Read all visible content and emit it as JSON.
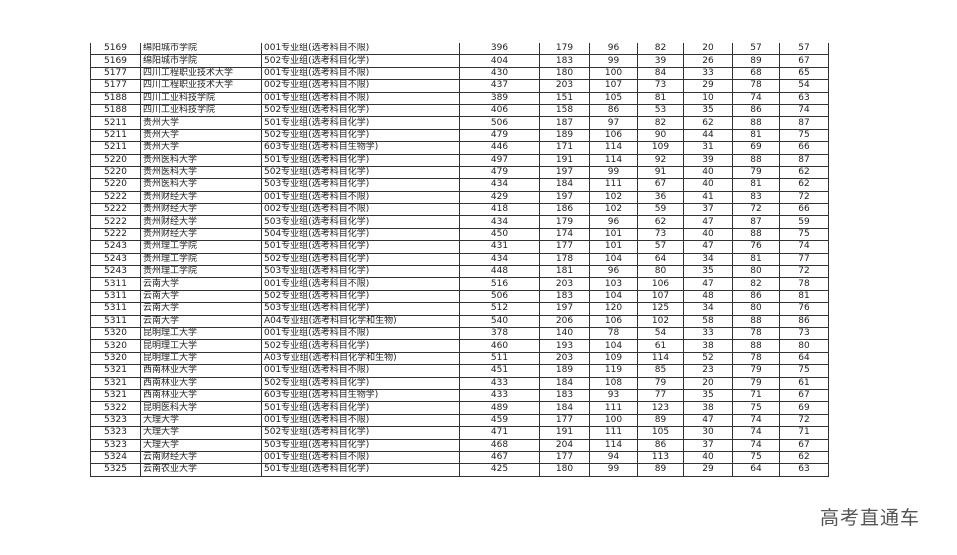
{
  "rows": [
    [
      "5169",
      "绵阳城市学院",
      "001专业组(选考科目不限)",
      "396",
      "179",
      "96",
      "82",
      "20",
      "57",
      "57"
    ],
    [
      "5169",
      "绵阳城市学院",
      "502专业组(选考科目化学)",
      "404",
      "183",
      "99",
      "39",
      "26",
      "89",
      "67"
    ],
    [
      "5177",
      "四川工程职业技术大学",
      "001专业组(选考科目不限)",
      "430",
      "180",
      "100",
      "84",
      "33",
      "68",
      "65"
    ],
    [
      "5177",
      "四川工程职业技术大学",
      "002专业组(选考科目不限)",
      "437",
      "203",
      "107",
      "73",
      "29",
      "78",
      "54"
    ],
    [
      "5188",
      "四川工业科技学院",
      "001专业组(选考科目不限)",
      "389",
      "151",
      "105",
      "81",
      "10",
      "74",
      "63"
    ],
    [
      "5188",
      "四川工业科技学院",
      "502专业组(选考科目化学)",
      "406",
      "158",
      "86",
      "53",
      "35",
      "86",
      "74"
    ],
    [
      "5211",
      "贵州大学",
      "501专业组(选考科目化学)",
      "506",
      "187",
      "97",
      "82",
      "62",
      "88",
      "87"
    ],
    [
      "5211",
      "贵州大学",
      "502专业组(选考科目化学)",
      "479",
      "189",
      "106",
      "90",
      "44",
      "81",
      "75"
    ],
    [
      "5211",
      "贵州大学",
      "603专业组(选考科目生物学)",
      "446",
      "171",
      "114",
      "109",
      "31",
      "69",
      "66"
    ],
    [
      "5220",
      "贵州医科大学",
      "501专业组(选考科目化学)",
      "497",
      "191",
      "114",
      "92",
      "39",
      "88",
      "87"
    ],
    [
      "5220",
      "贵州医科大学",
      "502专业组(选考科目化学)",
      "479",
      "197",
      "99",
      "91",
      "40",
      "79",
      "62"
    ],
    [
      "5220",
      "贵州医科大学",
      "503专业组(选考科目化学)",
      "434",
      "184",
      "111",
      "67",
      "40",
      "81",
      "62"
    ],
    [
      "5222",
      "贵州财经大学",
      "001专业组(选考科目不限)",
      "429",
      "197",
      "102",
      "36",
      "41",
      "83",
      "72"
    ],
    [
      "5222",
      "贵州财经大学",
      "002专业组(选考科目不限)",
      "418",
      "186",
      "102",
      "59",
      "37",
      "72",
      "66"
    ],
    [
      "5222",
      "贵州财经大学",
      "503专业组(选考科目化学)",
      "434",
      "179",
      "96",
      "62",
      "47",
      "87",
      "59"
    ],
    [
      "5222",
      "贵州财经大学",
      "504专业组(选考科目化学)",
      "450",
      "174",
      "101",
      "73",
      "40",
      "88",
      "75"
    ],
    [
      "5243",
      "贵州理工学院",
      "501专业组(选考科目化学)",
      "431",
      "177",
      "101",
      "57",
      "47",
      "76",
      "74"
    ],
    [
      "5243",
      "贵州理工学院",
      "502专业组(选考科目化学)",
      "434",
      "178",
      "104",
      "64",
      "34",
      "81",
      "77"
    ],
    [
      "5243",
      "贵州理工学院",
      "503专业组(选考科目化学)",
      "448",
      "181",
      "96",
      "80",
      "35",
      "80",
      "72"
    ],
    [
      "5311",
      "云南大学",
      "001专业组(选考科目不限)",
      "516",
      "203",
      "103",
      "106",
      "47",
      "82",
      "78"
    ],
    [
      "5311",
      "云南大学",
      "502专业组(选考科目化学)",
      "506",
      "183",
      "104",
      "107",
      "48",
      "86",
      "81"
    ],
    [
      "5311",
      "云南大学",
      "503专业组(选考科目化学)",
      "512",
      "197",
      "120",
      "125",
      "34",
      "80",
      "76"
    ],
    [
      "5311",
      "云南大学",
      "A04专业组(选考科目化学和生物)",
      "540",
      "206",
      "106",
      "102",
      "58",
      "88",
      "86"
    ],
    [
      "5320",
      "昆明理工大学",
      "001专业组(选考科目不限)",
      "378",
      "140",
      "78",
      "54",
      "33",
      "78",
      "73"
    ],
    [
      "5320",
      "昆明理工大学",
      "502专业组(选考科目化学)",
      "460",
      "193",
      "104",
      "61",
      "38",
      "88",
      "80"
    ],
    [
      "5320",
      "昆明理工大学",
      "A03专业组(选考科目化学和生物)",
      "511",
      "203",
      "109",
      "114",
      "52",
      "78",
      "64"
    ],
    [
      "5321",
      "西南林业大学",
      "001专业组(选考科目不限)",
      "451",
      "189",
      "119",
      "85",
      "23",
      "79",
      "75"
    ],
    [
      "5321",
      "西南林业大学",
      "502专业组(选考科目化学)",
      "433",
      "184",
      "108",
      "79",
      "20",
      "79",
      "61"
    ],
    [
      "5321",
      "西南林业大学",
      "603专业组(选考科目生物学)",
      "433",
      "183",
      "93",
      "77",
      "35",
      "71",
      "67"
    ],
    [
      "5322",
      "昆明医科大学",
      "501专业组(选考科目化学)",
      "489",
      "184",
      "111",
      "123",
      "38",
      "75",
      "69"
    ],
    [
      "5323",
      "大理大学",
      "001专业组(选考科目不限)",
      "459",
      "177",
      "100",
      "89",
      "47",
      "74",
      "72"
    ],
    [
      "5323",
      "大理大学",
      "502专业组(选考科目化学)",
      "471",
      "191",
      "111",
      "105",
      "30",
      "74",
      "71"
    ],
    [
      "5323",
      "大理大学",
      "503专业组(选考科目化学)",
      "468",
      "204",
      "114",
      "86",
      "37",
      "74",
      "67"
    ],
    [
      "5324",
      "云南财经大学",
      "001专业组(选考科目不限)",
      "467",
      "177",
      "94",
      "113",
      "40",
      "75",
      "62"
    ],
    [
      "5325",
      "云南农业大学",
      "501专业组(选考科目化学)",
      "425",
      "180",
      "99",
      "89",
      "29",
      "64",
      "63"
    ]
  ],
  "watermark": "高考直通车"
}
